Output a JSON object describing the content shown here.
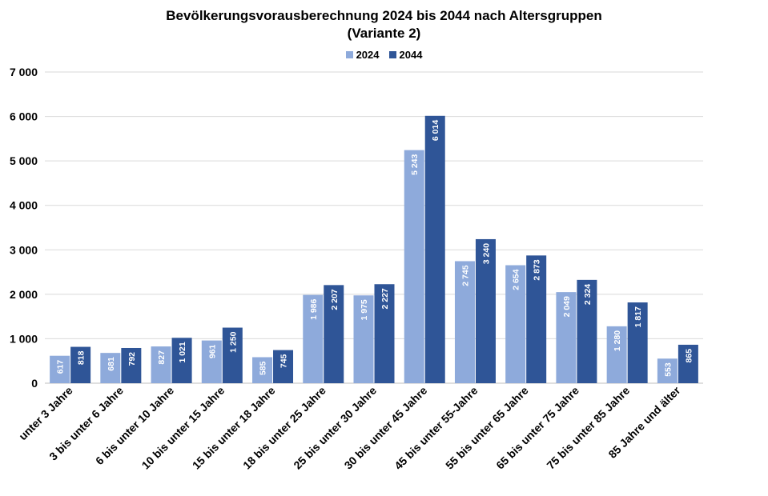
{
  "chart_data": {
    "type": "bar",
    "title": "Bevölkerungsvorausberechnung 2024 bis 2044 nach Altersgruppen",
    "subtitle": "(Variante 2)",
    "categories": [
      "unter 3 Jahre",
      "3 bis unter 6 Jahre",
      "6 bis unter 10 Jahre",
      "10 bis unter 15 Jahre",
      "15 bis unter 18 Jahre",
      "18 bis unter 25 Jahre",
      "25 bis unter 30 Jahre",
      "30 bis unter 45 Jahre",
      "45 bis unter 55-Jahre",
      "55 bis unter 65 Jahre",
      "65 bis unter 75 Jahre",
      "75 bis unter 85 Jahre",
      "85 Jahre und älter"
    ],
    "series": [
      {
        "name": "2024",
        "color": "#8eaadb",
        "values": [
          617,
          681,
          827,
          961,
          585,
          1986,
          1975,
          5243,
          2745,
          2654,
          2049,
          1280,
          553
        ],
        "labels": [
          "617",
          "681",
          "827",
          "961",
          "585",
          "1 986",
          "1 975",
          "5 243",
          "2 745",
          "2 654",
          "2 049",
          "1 280",
          "553"
        ]
      },
      {
        "name": "2044",
        "color": "#2f5597",
        "values": [
          818,
          792,
          1021,
          1250,
          745,
          2207,
          2227,
          6014,
          3240,
          2873,
          2324,
          1817,
          865
        ],
        "labels": [
          "818",
          "792",
          "1 021",
          "1 250",
          "745",
          "2 207",
          "2 227",
          "6 014",
          "3 240",
          "2 873",
          "2 324",
          "1 817",
          "865"
        ]
      }
    ],
    "ylim": [
      0,
      7000
    ],
    "yticks": [
      0,
      1000,
      2000,
      3000,
      4000,
      5000,
      6000,
      7000
    ],
    "ytick_labels": [
      "0",
      "1 000",
      "2 000",
      "3 000",
      "4 000",
      "5 000",
      "6 000",
      "7 000"
    ],
    "grid": true,
    "legend_position": "top"
  }
}
